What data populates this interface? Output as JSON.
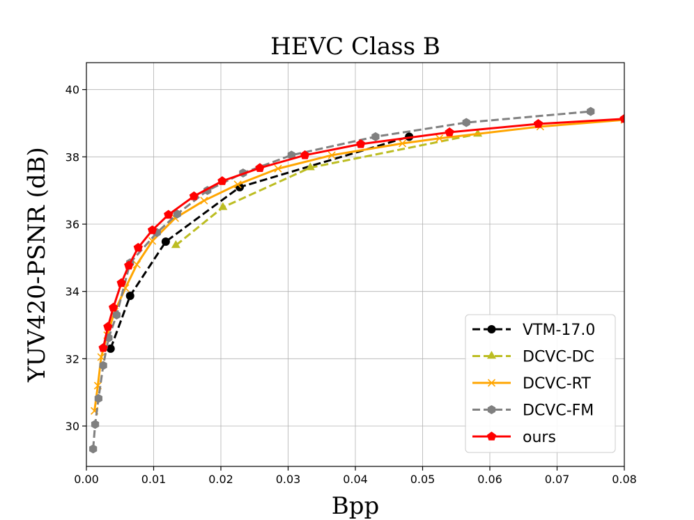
{
  "chart_data": {
    "type": "line",
    "title": "HEVC Class B",
    "xlabel": "Bpp",
    "ylabel": "YUV420-PSNR (dB)",
    "xlim": [
      0.0,
      0.08
    ],
    "ylim": [
      28.8,
      40.8
    ],
    "xticks": [
      0.0,
      0.01,
      0.02,
      0.03,
      0.04,
      0.05,
      0.06,
      0.07,
      0.08
    ],
    "xtick_labels": [
      "0.00",
      "0.01",
      "0.02",
      "0.03",
      "0.04",
      "0.05",
      "0.06",
      "0.07",
      "0.08"
    ],
    "yticks": [
      30,
      32,
      34,
      36,
      38,
      40
    ],
    "ytick_labels": [
      "30",
      "32",
      "34",
      "36",
      "38",
      "40"
    ],
    "grid": true,
    "legend_position": "bottom-right",
    "series": [
      {
        "name": "VTM-17.0",
        "color": "#000000",
        "dash": "dashed",
        "marker": "circle",
        "x": [
          0.0036,
          0.0065,
          0.0118,
          0.0228,
          0.048
        ],
        "y": [
          32.3,
          33.87,
          35.48,
          37.1,
          38.6
        ]
      },
      {
        "name": "DCVC-DC",
        "color": "#bcbd22",
        "dash": "dashed",
        "marker": "triangle",
        "x": [
          0.0133,
          0.0203,
          0.0333,
          0.0582
        ],
        "y": [
          35.37,
          36.5,
          37.68,
          38.68
        ]
      },
      {
        "name": "DCVC-RT",
        "color": "#ffa500",
        "dash": "solid",
        "marker": "x",
        "x": [
          0.0012,
          0.0017,
          0.0022,
          0.0031,
          0.0042,
          0.0058,
          0.0075,
          0.0098,
          0.0132,
          0.0175,
          0.0225,
          0.0285,
          0.0365,
          0.047,
          0.0525,
          0.0675,
          0.08
        ],
        "y": [
          30.45,
          31.2,
          32.05,
          32.7,
          33.4,
          34.1,
          34.8,
          35.5,
          36.18,
          36.7,
          37.18,
          37.65,
          38.05,
          38.4,
          38.55,
          38.9,
          39.1
        ]
      },
      {
        "name": "DCVC-FM",
        "color": "#808080",
        "dash": "dashed",
        "marker": "hexagon",
        "x": [
          0.001,
          0.0013,
          0.0018,
          0.0025,
          0.0033,
          0.0045,
          0.0065,
          0.0105,
          0.0135,
          0.018,
          0.0233,
          0.0305,
          0.043,
          0.0565,
          0.075
        ],
        "y": [
          29.32,
          30.05,
          30.82,
          31.8,
          32.62,
          33.3,
          34.85,
          35.75,
          36.3,
          37.0,
          37.52,
          38.05,
          38.6,
          39.02,
          39.35
        ]
      },
      {
        "name": "ours",
        "color": "#ff0000",
        "dash": "solid",
        "marker": "pentagon",
        "x": [
          0.0025,
          0.0032,
          0.004,
          0.0052,
          0.0063,
          0.0077,
          0.0098,
          0.0122,
          0.016,
          0.0202,
          0.0258,
          0.0325,
          0.0408,
          0.054,
          0.0672,
          0.08
        ],
        "y": [
          32.32,
          32.95,
          33.52,
          34.25,
          34.77,
          35.3,
          35.82,
          36.28,
          36.83,
          37.28,
          37.67,
          38.05,
          38.38,
          38.73,
          38.98,
          39.13
        ]
      }
    ]
  }
}
